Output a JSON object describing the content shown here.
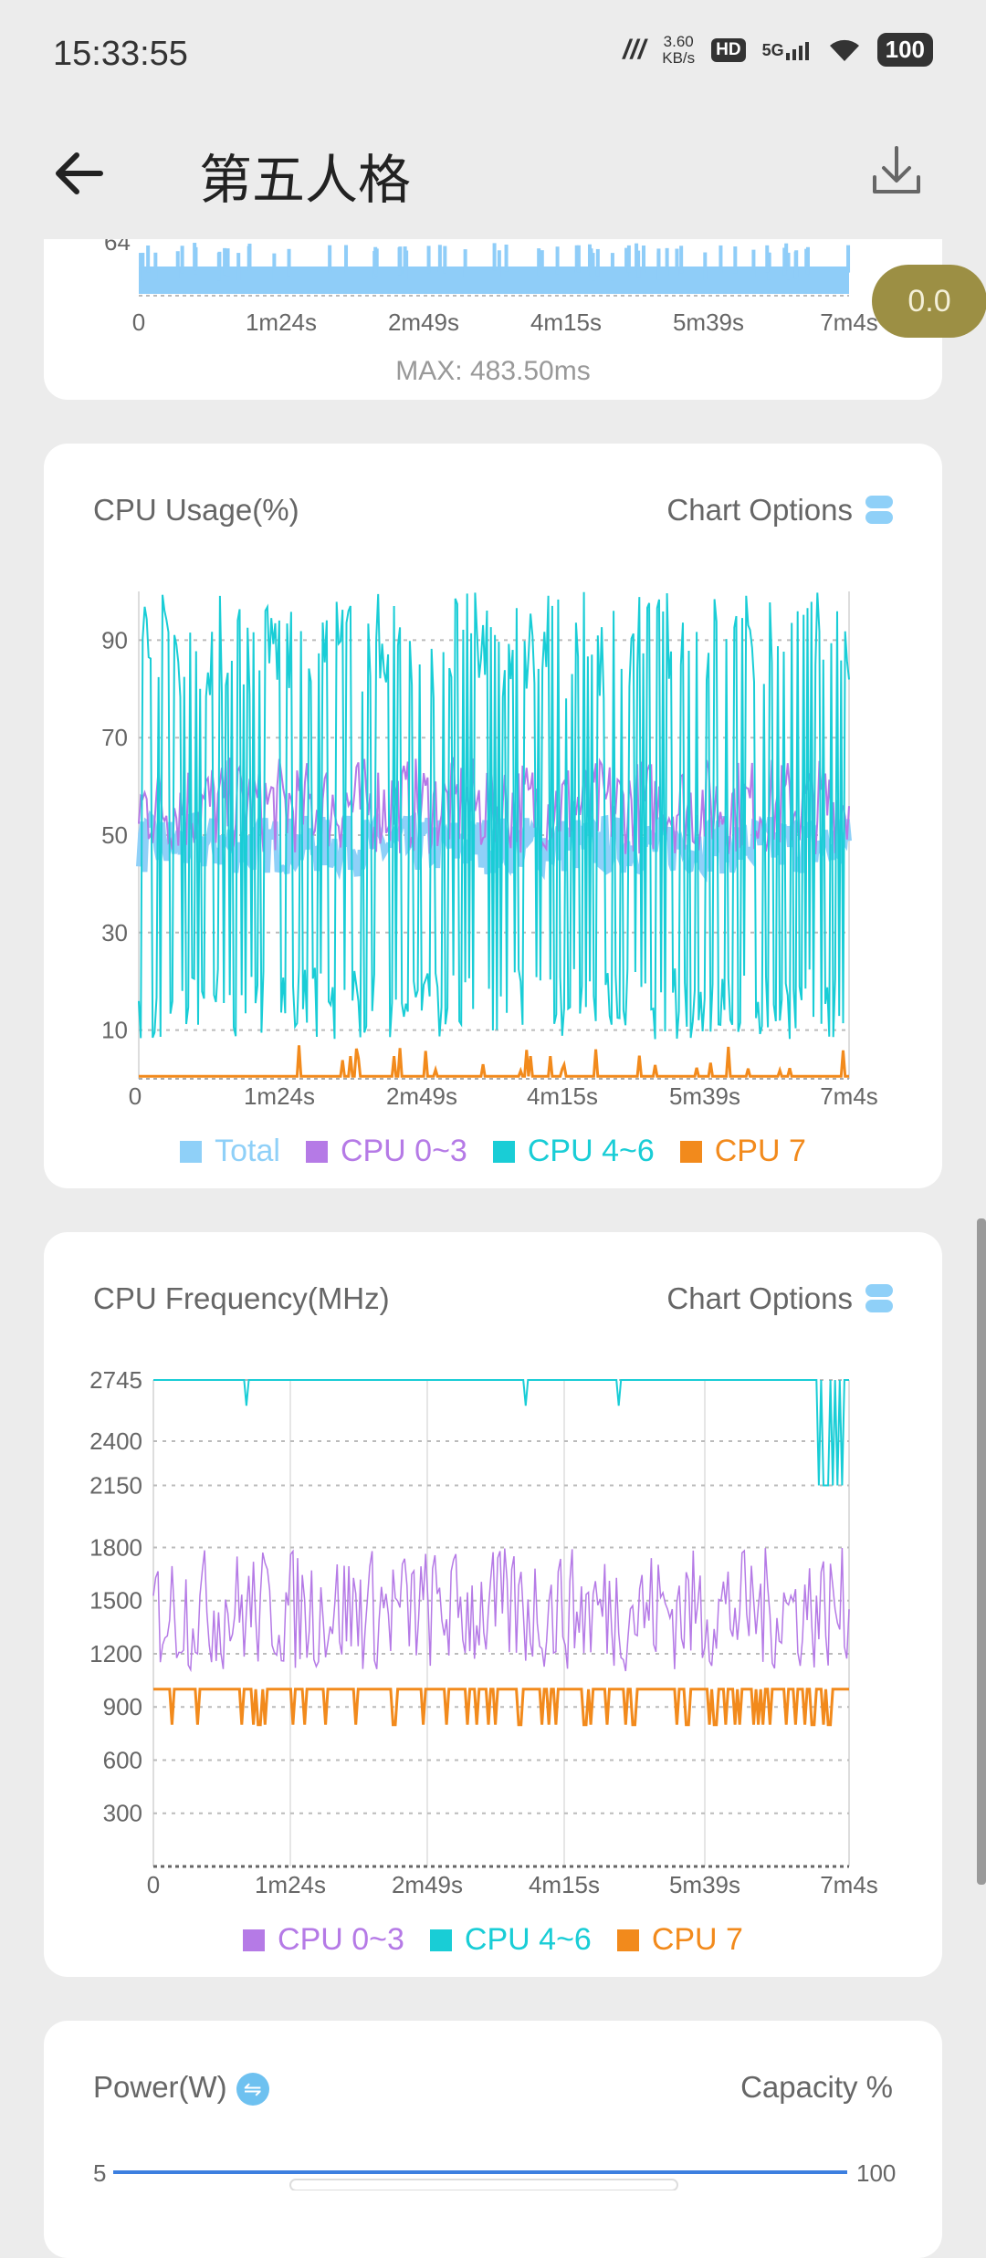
{
  "status_bar": {
    "time": "15:33:55",
    "net_speed_value": "3.60",
    "net_speed_unit": "KB/s",
    "hd": "HD",
    "network": "5G",
    "battery": "100"
  },
  "header": {
    "title": "第五人格",
    "back_icon": "arrow-left-icon",
    "download_icon": "download-icon"
  },
  "fab": {
    "value": "0.0"
  },
  "frame_time_card": {
    "y_tick_partial": "64",
    "x_ticks": [
      "0",
      "1m24s",
      "2m49s",
      "4m15s",
      "5m39s",
      "7m4s"
    ],
    "max_text": "MAX: 483.50ms",
    "color": "#8fcdf8"
  },
  "cpu_usage_card": {
    "title": "CPU Usage(%)",
    "options_label": "Chart Options",
    "legend": [
      {
        "label": "Total",
        "color": "#8fd0f8"
      },
      {
        "label": "CPU 0~3",
        "color": "#b57ae6"
      },
      {
        "label": "CPU 4~6",
        "color": "#19cdd6"
      },
      {
        "label": "CPU 7",
        "color": "#f28a1c"
      }
    ]
  },
  "cpu_freq_card": {
    "title": "CPU Frequency(MHz)",
    "options_label": "Chart Options",
    "legend": [
      {
        "label": "CPU 0~3",
        "color": "#b57ae6"
      },
      {
        "label": "CPU 4~6",
        "color": "#19cdd6"
      },
      {
        "label": "CPU 7",
        "color": "#f28a1c"
      }
    ]
  },
  "power_card": {
    "title": "Power(W)",
    "right_label": "Capacity %",
    "left_tick": "5",
    "right_tick": "100"
  },
  "chart_data": [
    {
      "type": "line",
      "title": "CPU Usage(%)",
      "x_ticks": [
        "0",
        "1m24s",
        "2m49s",
        "4m15s",
        "5m39s",
        "7m4s"
      ],
      "y_ticks": [
        10,
        30,
        50,
        70,
        90
      ],
      "ylim": [
        0,
        100
      ],
      "series": [
        {
          "name": "Total",
          "range": [
            40,
            55
          ]
        },
        {
          "name": "CPU 0~3",
          "range": [
            45,
            65
          ]
        },
        {
          "name": "CPU 4~6",
          "range": [
            5,
            100
          ]
        },
        {
          "name": "CPU 7",
          "range": [
            0,
            7
          ]
        }
      ]
    },
    {
      "type": "line",
      "title": "CPU Frequency(MHz)",
      "x_ticks": [
        "0",
        "1m24s",
        "2m49s",
        "4m15s",
        "5m39s",
        "7m4s"
      ],
      "y_ticks": [
        300,
        600,
        900,
        1200,
        1500,
        1800,
        2150,
        2400,
        2745
      ],
      "series": [
        {
          "name": "CPU 0~3",
          "range": [
            1100,
            1800
          ]
        },
        {
          "name": "CPU 4~6",
          "typical": 2745,
          "end": 2150
        },
        {
          "name": "CPU 7",
          "range": [
            800,
            1000
          ]
        }
      ]
    }
  ]
}
